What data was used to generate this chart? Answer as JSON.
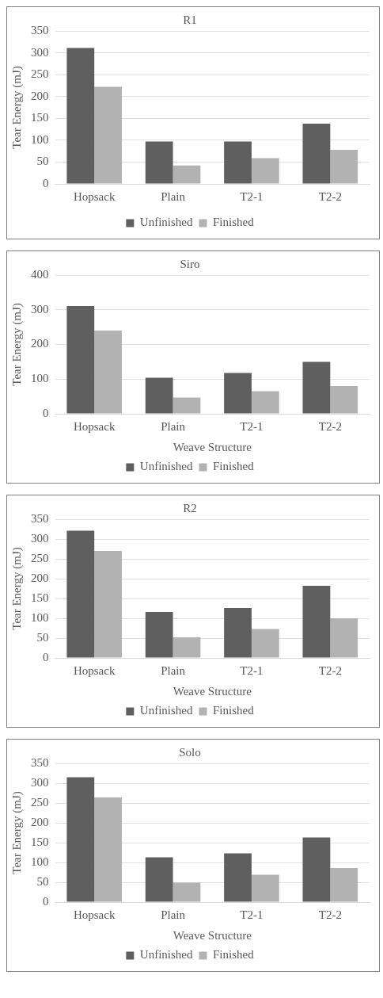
{
  "chart_data": [
    {
      "type": "bar",
      "title": "R1",
      "ylabel": "Tear Energy (mJ)",
      "categories": [
        "Hopsack",
        "Plain",
        "T2-1",
        "T2-2"
      ],
      "series": [
        {
          "name": "Unfinished",
          "color": "#5f5f5f",
          "values": [
            311,
            97,
            97,
            138
          ]
        },
        {
          "name": "Finished",
          "color": "#b2b2b2",
          "values": [
            222,
            42,
            59,
            78
          ]
        }
      ],
      "ylim": [
        0,
        350
      ],
      "yticks": [
        0,
        50,
        100,
        150,
        200,
        250,
        300,
        350
      ],
      "grid": "y",
      "legend": "bottom"
    },
    {
      "type": "bar",
      "title": "Siro",
      "xlabel": "Weave Structure",
      "ylabel": "Tear Energy (mJ)",
      "categories": [
        "Hopsack",
        "Plain",
        "T2-1",
        "T2-2"
      ],
      "series": [
        {
          "name": "Unfinished",
          "color": "#5f5f5f",
          "values": [
            311,
            104,
            118,
            150
          ]
        },
        {
          "name": "Finished",
          "color": "#b2b2b2",
          "values": [
            240,
            47,
            65,
            80
          ]
        }
      ],
      "ylim": [
        0,
        400
      ],
      "yticks": [
        0,
        100,
        200,
        300,
        400
      ],
      "grid": "y",
      "legend": "bottom"
    },
    {
      "type": "bar",
      "title": "R2",
      "xlabel": "Weave Structure",
      "ylabel": "Tear Energy (mJ)",
      "categories": [
        "Hopsack",
        "Plain",
        "T2-1",
        "T2-2"
      ],
      "series": [
        {
          "name": "Unfinished",
          "color": "#5f5f5f",
          "values": [
            321,
            116,
            126,
            182
          ]
        },
        {
          "name": "Finished",
          "color": "#b2b2b2",
          "values": [
            270,
            52,
            73,
            100
          ]
        }
      ],
      "ylim": [
        0,
        350
      ],
      "yticks": [
        0,
        50,
        100,
        150,
        200,
        250,
        300,
        350
      ],
      "grid": "y",
      "legend": "bottom"
    },
    {
      "type": "bar",
      "title": "Solo",
      "xlabel": "Weave Structure",
      "ylabel": "Tear Energy (mJ)",
      "categories": [
        "Hopsack",
        "Plain",
        "T2-1",
        "T2-2"
      ],
      "series": [
        {
          "name": "Unfinished",
          "color": "#5f5f5f",
          "values": [
            315,
            113,
            123,
            163
          ]
        },
        {
          "name": "Finished",
          "color": "#b2b2b2",
          "values": [
            264,
            49,
            69,
            86
          ]
        }
      ],
      "ylim": [
        0,
        350
      ],
      "yticks": [
        0,
        50,
        100,
        150,
        200,
        250,
        300,
        350
      ],
      "grid": "y",
      "legend": "bottom"
    }
  ]
}
